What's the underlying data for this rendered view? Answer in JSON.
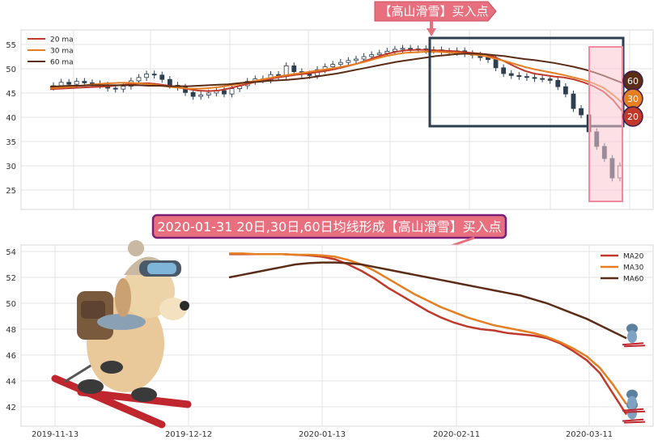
{
  "annotations": {
    "top_callout": "【高山滑雪】买入点",
    "banner": "2020-01-31 20日,30日,60日均线形成【高山滑雪】买入点"
  },
  "colors": {
    "ma20": "#c0392b",
    "ma30": "#e67e22",
    "ma60": "#5b2c16",
    "candle_up": "#ffffff",
    "candle_down": "#2c3e50",
    "callout_fill": "#e8707e",
    "banner_border": "#7b1e7a",
    "box_dark": "#2c3e50",
    "box_pink": "#f4a6b4"
  },
  "chart_data": [
    {
      "type": "line",
      "subtype": "candlestick with moving averages",
      "ylim": [
        21,
        58
      ],
      "y_ticks": [
        25,
        30,
        35,
        40,
        45,
        50,
        55
      ],
      "grid": true,
      "legend_position": "top-left",
      "series": [
        {
          "name": "20 ma",
          "color_key": "ma20",
          "values": [
            45.8,
            45.9,
            46.0,
            46.1,
            46.2,
            46.3,
            46.4,
            46.6,
            46.8,
            47.0,
            47.0,
            46.8,
            46.5,
            46.1,
            45.8,
            45.5,
            45.4,
            45.5,
            45.9,
            46.4,
            46.9,
            47.4,
            47.8,
            48.2,
            48.5,
            48.8,
            49.0,
            49.3,
            49.6,
            50.0,
            50.5,
            51.0,
            51.7,
            52.4,
            53.0,
            53.5,
            53.8,
            53.9,
            53.9,
            53.8,
            53.7,
            53.6,
            53.4,
            53.2,
            53.0,
            52.4,
            51.5,
            50.5,
            49.6,
            49.0,
            48.7,
            48.4,
            48.2,
            47.8,
            47.2,
            46.4,
            45.3,
            43.5,
            41.0
          ]
        },
        {
          "name": "30 ma",
          "color_key": "ma30",
          "values": [
            46.0,
            46.1,
            46.3,
            46.5,
            46.7,
            46.9,
            47.0,
            47.1,
            47.1,
            47.0,
            46.8,
            46.6,
            46.3,
            46.1,
            45.9,
            45.9,
            46.0,
            46.2,
            46.5,
            46.8,
            47.2,
            47.6,
            48.0,
            48.4,
            48.7,
            49.0,
            49.3,
            49.6,
            49.9,
            50.2,
            50.6,
            51.0,
            51.5,
            52.1,
            52.6,
            53.0,
            53.3,
            53.4,
            53.5,
            53.5,
            53.4,
            53.3,
            53.1,
            52.9,
            52.6,
            52.1,
            51.6,
            51.0,
            50.4,
            49.9,
            49.5,
            49.1,
            48.7,
            48.2,
            47.7,
            47.0,
            46.1,
            44.6,
            42.8
          ]
        },
        {
          "name": "60 ma",
          "color_key": "ma60",
          "values": [
            46.3,
            46.4,
            46.5,
            46.5,
            46.6,
            46.6,
            46.6,
            46.6,
            46.6,
            46.6,
            46.5,
            46.5,
            46.4,
            46.4,
            46.4,
            46.5,
            46.6,
            46.7,
            46.8,
            47.0,
            47.2,
            47.3,
            47.5,
            47.6,
            47.7,
            47.9,
            48.1,
            48.4,
            48.7,
            49.0,
            49.4,
            49.8,
            50.2,
            50.6,
            51.0,
            51.4,
            51.7,
            52.0,
            52.3,
            52.6,
            52.8,
            53.0,
            53.1,
            53.1,
            53.0,
            52.8,
            52.6,
            52.3,
            52.0,
            51.8,
            51.5,
            51.2,
            50.8,
            50.4,
            49.9,
            49.3,
            48.6,
            47.8,
            47.0
          ]
        }
      ],
      "candles_close": [
        46.5,
        47.2,
        46.8,
        47.4,
        47.1,
        46.9,
        46.6,
        46.0,
        45.8,
        46.4,
        47.5,
        48.2,
        48.9,
        48.7,
        47.8,
        46.6,
        46.2,
        45.1,
        44.3,
        44.6,
        45.0,
        45.5,
        44.8,
        45.9,
        46.5,
        47.4,
        47.9,
        47.7,
        48.8,
        48.4,
        50.6,
        49.4,
        48.9,
        48.6,
        49.8,
        50.4,
        50.9,
        51.3,
        51.7,
        52.0,
        52.5,
        52.9,
        53.2,
        53.6,
        54.0,
        54.2,
        53.9,
        54.1,
        53.8,
        53.9,
        53.6,
        53.4,
        53.7,
        53.1,
        52.8,
        52.3,
        51.9,
        50.2,
        49.0,
        48.6,
        48.4,
        48.2,
        48.0,
        47.9,
        47.6,
        46.3,
        44.8,
        41.8,
        40.5,
        37.0,
        34.0,
        31.5,
        27.5,
        30.0
      ],
      "end_labels": [
        "60",
        "30",
        "20"
      ]
    },
    {
      "type": "line",
      "ylim": [
        40.5,
        54.5
      ],
      "y_ticks": [
        42,
        44,
        46,
        48,
        50,
        52,
        54
      ],
      "x_tick_labels": [
        "2019-11-13",
        "2019-12-12",
        "2020-01-13",
        "2020-02-11",
        "2020-03-11"
      ],
      "grid": true,
      "legend_position": "top-right",
      "series": [
        {
          "name": "MA20",
          "color_key": "ma20",
          "values": [
            53.8,
            53.8,
            53.8,
            53.8,
            53.8,
            53.75,
            53.7,
            53.6,
            53.4,
            53.0,
            52.5,
            51.9,
            51.2,
            50.6,
            50.0,
            49.4,
            48.9,
            48.5,
            48.2,
            48.0,
            47.9,
            47.7,
            47.6,
            47.5,
            47.3,
            46.9,
            46.3,
            45.6,
            44.6,
            43.0,
            41.4
          ]
        },
        {
          "name": "MA30",
          "color_key": "ma30",
          "values": [
            53.85,
            53.85,
            53.8,
            53.8,
            53.8,
            53.75,
            53.75,
            53.7,
            53.6,
            53.35,
            53.0,
            52.5,
            51.9,
            51.3,
            50.7,
            50.2,
            49.7,
            49.3,
            48.9,
            48.6,
            48.3,
            48.1,
            47.9,
            47.7,
            47.4,
            47.0,
            46.5,
            45.9,
            45.0,
            43.7,
            42.2
          ]
        },
        {
          "name": "MA60",
          "color_key": "ma60",
          "values": [
            52.0,
            52.2,
            52.4,
            52.6,
            52.8,
            53.0,
            53.1,
            53.15,
            53.15,
            53.1,
            53.0,
            52.8,
            52.6,
            52.4,
            52.2,
            52.0,
            51.8,
            51.6,
            51.4,
            51.2,
            51.0,
            50.8,
            50.6,
            50.3,
            50.0,
            49.6,
            49.2,
            48.8,
            48.3,
            47.8,
            47.3
          ]
        }
      ]
    }
  ]
}
